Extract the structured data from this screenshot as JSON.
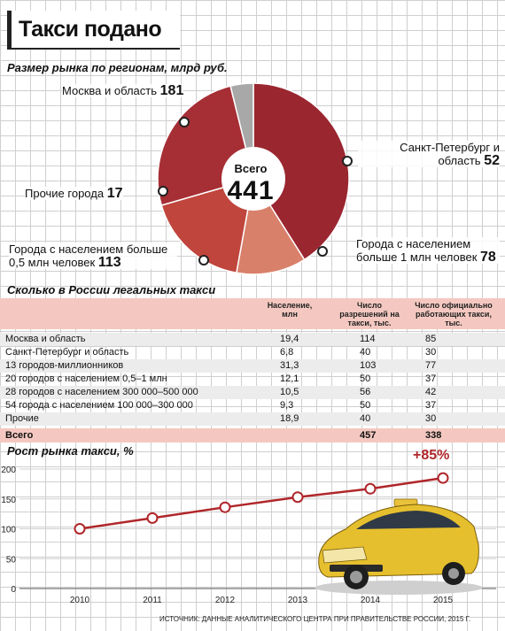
{
  "title": "Такси подано",
  "chart_data": [
    {
      "type": "pie",
      "title": "Размер рынка по регионам, млрд руб.",
      "center_label": "Всего",
      "center_value": "441",
      "slices": [
        {
          "name": "Москва и область",
          "value": 181,
          "color": "#9a2630"
        },
        {
          "name": "Санкт-Петербург и область",
          "value": 52,
          "color": "#d9806b"
        },
        {
          "name": "Города с населением больше 1 млн человек",
          "value": 78,
          "color": "#c0453c"
        },
        {
          "name": "Города с населением больше 0,5 млн человек",
          "value": 113,
          "color": "#a62e35"
        },
        {
          "name": "Прочие города",
          "value": 17,
          "color": "#a8a8a8"
        }
      ]
    },
    {
      "type": "table",
      "title": "Сколько в России легальных такси",
      "columns": [
        "",
        "Население, млн",
        "Число разрешений на такси, тыс.",
        "Число официально работающих такси, тыс."
      ],
      "rows": [
        [
          "Москва и область",
          "19,4",
          "114",
          "85"
        ],
        [
          "Санкт-Петербург и область",
          "6,8",
          "40",
          "30"
        ],
        [
          "13 городов-миллионников",
          "31,3",
          "103",
          "77"
        ],
        [
          "20 городов с населением 0,5–1 млн",
          "12,1",
          "50",
          "37"
        ],
        [
          "28 городов с населением 300 000–500 000",
          "10,5",
          "56",
          "42"
        ],
        [
          "54 города с населением 100 000–300 000",
          "9,3",
          "50",
          "37"
        ],
        [
          "Прочие",
          "18,9",
          "40",
          "30"
        ]
      ],
      "total": [
        "Всего",
        "",
        "457",
        "338"
      ]
    },
    {
      "type": "line",
      "title": "Рост рынка такси, %",
      "x": [
        "2010",
        "2011",
        "2012",
        "2013",
        "2014",
        "2015"
      ],
      "series": [
        {
          "values": [
            100,
            118,
            136,
            153,
            167,
            185
          ]
        }
      ],
      "ylim": [
        0,
        200
      ],
      "yticks": [
        "0",
        "50",
        "100",
        "150",
        "200"
      ],
      "annotation": "+85%",
      "color": "#b0262a"
    }
  ],
  "source": "ИСТОЧНИК: ДАННЫЕ АНАЛИТИЧЕСКОГО ЦЕНТРА ПРИ ПРАВИТЕЛЬСТВЕ РОССИИ, 2015 Г."
}
